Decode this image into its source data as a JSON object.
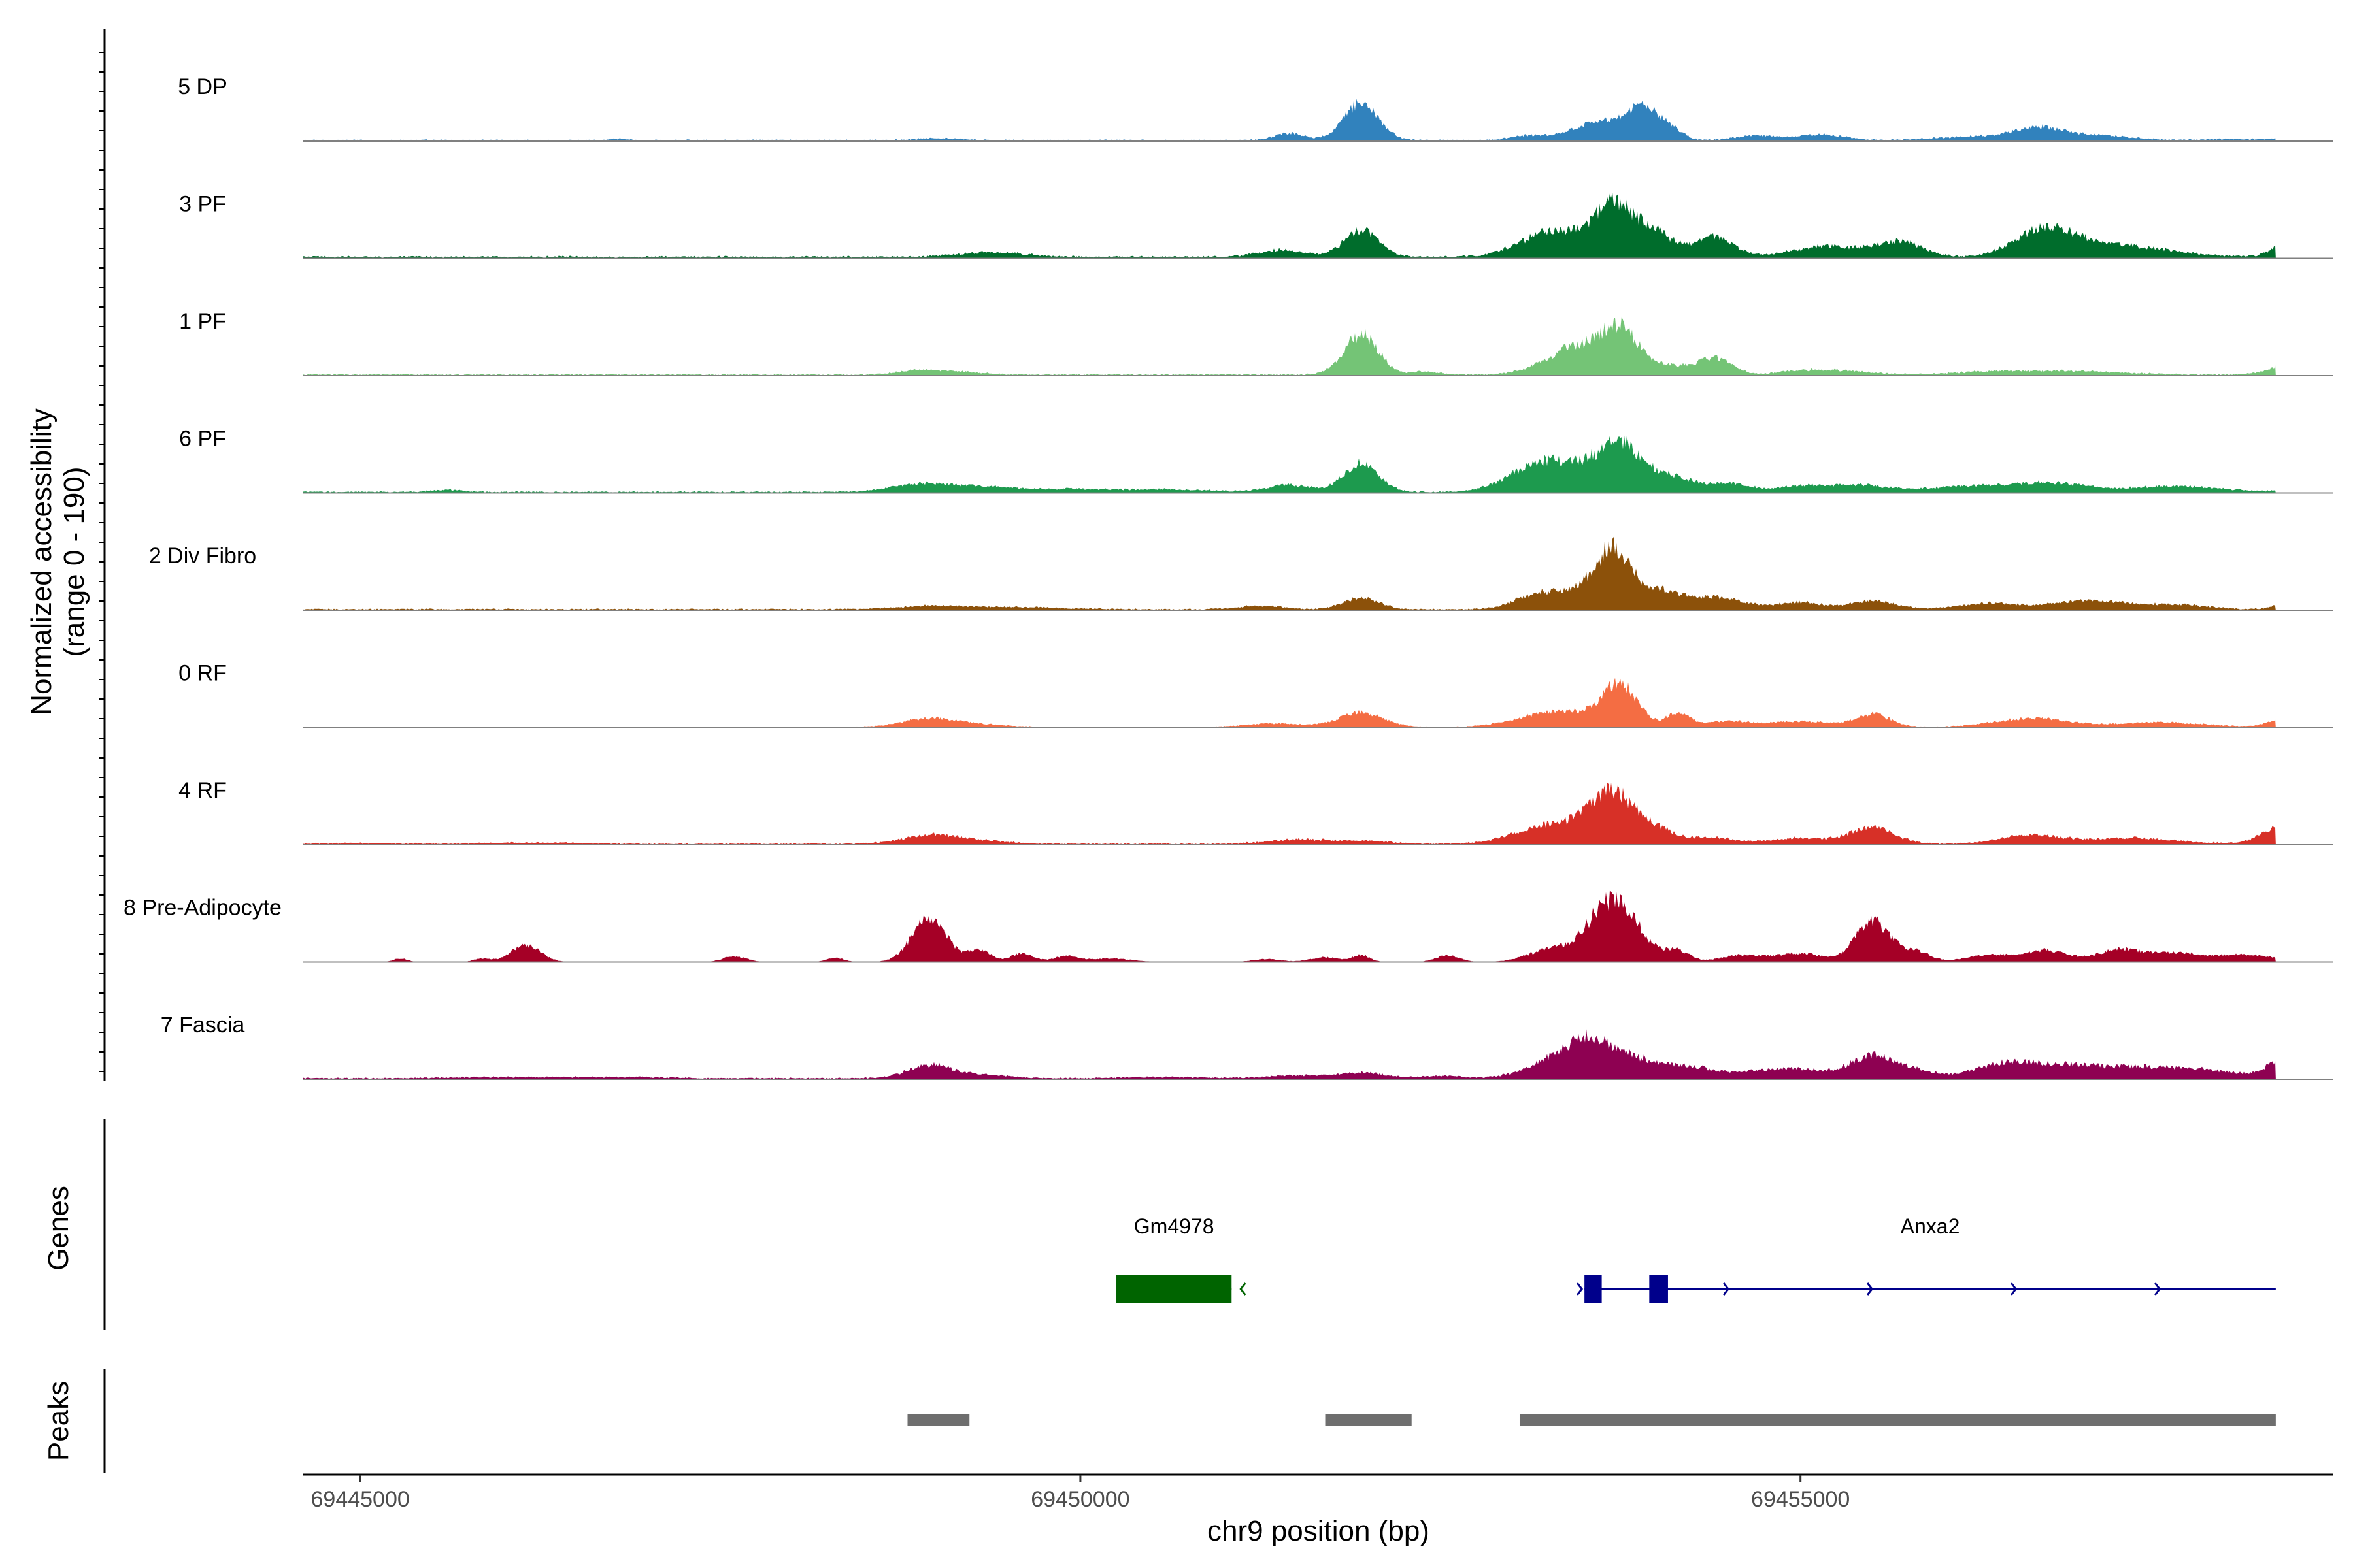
{
  "chart_data": {
    "type": "area",
    "title": "",
    "ylabel_line1": "Normalized accessibility",
    "ylabel_line2": "(range 0 - 190)",
    "y_range": [
      0,
      190
    ],
    "xlabel": "chr9 position (bp)",
    "x_range": [
      69444600,
      69458700
    ],
    "x_ticks": [
      69445000,
      69450000,
      69455000
    ],
    "x_tick_labels": [
      "69445000",
      "69450000",
      "69455000"
    ],
    "genes_label": "Genes",
    "peaks_label": "Peaks",
    "tracks": [
      {
        "name": "5 DP",
        "color": "#3182bd",
        "baseline": 2,
        "peaks": [
          [
            69446800,
            2,
            60
          ],
          [
            69449000,
            3,
            150
          ],
          [
            69451450,
            12,
            100
          ],
          [
            69451950,
            65,
            120
          ],
          [
            69453100,
            7,
            120
          ],
          [
            69453600,
            30,
            200
          ],
          [
            69453900,
            50,
            110
          ],
          [
            69454100,
            17,
            80
          ],
          [
            69454700,
            8,
            150
          ],
          [
            69455150,
            10,
            150
          ],
          [
            69456300,
            7,
            300
          ],
          [
            69456650,
            16,
            150
          ],
          [
            69457000,
            9,
            250
          ],
          [
            69458000,
            2,
            150
          ],
          [
            69458500,
            12,
            120
          ]
        ]
      },
      {
        "name": "3 PF",
        "color": "#006d2c",
        "baseline": 3,
        "peaks": [
          [
            69449300,
            5,
            200
          ],
          [
            69449500,
            4,
            200
          ],
          [
            69451400,
            12,
            150
          ],
          [
            69451950,
            45,
            120
          ],
          [
            69453200,
            25,
            200
          ],
          [
            69453500,
            34,
            250
          ],
          [
            69453700,
            60,
            110
          ],
          [
            69453950,
            45,
            150
          ],
          [
            69454400,
            35,
            130
          ],
          [
            69455200,
            18,
            250
          ],
          [
            69455700,
            25,
            150
          ],
          [
            69456700,
            45,
            200
          ],
          [
            69457200,
            20,
            350
          ],
          [
            69458450,
            40,
            120
          ],
          [
            69458650,
            15,
            100
          ]
        ]
      },
      {
        "name": "1 PF",
        "color": "#74c476",
        "baseline": 2,
        "peaks": [
          [
            69448900,
            8,
            150
          ],
          [
            69449200,
            4,
            150
          ],
          [
            69451950,
            68,
            120
          ],
          [
            69452400,
            5,
            100
          ],
          [
            69453200,
            12,
            150
          ],
          [
            69453450,
            45,
            150
          ],
          [
            69453750,
            80,
            130
          ],
          [
            69454100,
            15,
            100
          ],
          [
            69454400,
            30,
            120
          ],
          [
            69455000,
            6,
            150
          ],
          [
            69455300,
            6,
            200
          ],
          [
            69456400,
            6,
            300
          ],
          [
            69457000,
            5,
            300
          ],
          [
            69458450,
            22,
            150
          ]
        ]
      },
      {
        "name": "6 PF",
        "color": "#1d9a4e",
        "baseline": 2,
        "peaks": [
          [
            69445600,
            4,
            100
          ],
          [
            69448900,
            14,
            200
          ],
          [
            69449300,
            8,
            200
          ],
          [
            69449900,
            5,
            300
          ],
          [
            69450600,
            4,
            300
          ],
          [
            69451450,
            12,
            150
          ],
          [
            69451950,
            50,
            120
          ],
          [
            69453150,
            40,
            200
          ],
          [
            69453450,
            30,
            200
          ],
          [
            69453750,
            75,
            150
          ],
          [
            69454100,
            25,
            150
          ],
          [
            69454500,
            15,
            150
          ],
          [
            69455000,
            10,
            150
          ],
          [
            69455400,
            12,
            200
          ],
          [
            69456200,
            10,
            300
          ],
          [
            69456750,
            14,
            250
          ],
          [
            69457600,
            10,
            300
          ],
          [
            69458500,
            22,
            100
          ]
        ]
      },
      {
        "name": "2 Div Fibro",
        "color": "#8c510a",
        "baseline": 2,
        "peaks": [
          [
            69449000,
            6,
            250
          ],
          [
            69449600,
            3,
            300
          ],
          [
            69451250,
            6,
            150
          ],
          [
            69451950,
            20,
            120
          ],
          [
            69453150,
            20,
            150
          ],
          [
            69453500,
            30,
            200
          ],
          [
            69453700,
            85,
            120
          ],
          [
            69454000,
            30,
            150
          ],
          [
            69454400,
            20,
            200
          ],
          [
            69455000,
            12,
            150
          ],
          [
            69455500,
            15,
            150
          ],
          [
            69456300,
            10,
            200
          ],
          [
            69457000,
            15,
            250
          ],
          [
            69457600,
            8,
            200
          ],
          [
            69458500,
            30,
            120
          ]
        ]
      },
      {
        "name": "0 RF",
        "color": "#f46d43",
        "baseline": 1,
        "peaks": [
          [
            69448950,
            15,
            180
          ],
          [
            69449300,
            4,
            200
          ],
          [
            69451350,
            6,
            200
          ],
          [
            69451950,
            25,
            150
          ],
          [
            69453150,
            15,
            200
          ],
          [
            69453450,
            20,
            200
          ],
          [
            69453750,
            70,
            120
          ],
          [
            69454150,
            25,
            80
          ],
          [
            69454500,
            10,
            150
          ],
          [
            69455000,
            10,
            200
          ],
          [
            69455500,
            22,
            120
          ],
          [
            69456600,
            15,
            250
          ],
          [
            69457500,
            8,
            300
          ],
          [
            69458500,
            40,
            140
          ]
        ]
      },
      {
        "name": "4 RF",
        "color": "#d73027",
        "baseline": 2,
        "peaks": [
          [
            69445000,
            1,
            300
          ],
          [
            69446200,
            2,
            300
          ],
          [
            69448950,
            15,
            180
          ],
          [
            69449300,
            5,
            200
          ],
          [
            69451500,
            7,
            200
          ],
          [
            69451950,
            5,
            200
          ],
          [
            69453150,
            20,
            200
          ],
          [
            69453450,
            25,
            200
          ],
          [
            69453700,
            75,
            150
          ],
          [
            69454000,
            22,
            150
          ],
          [
            69454400,
            10,
            150
          ],
          [
            69455000,
            10,
            200
          ],
          [
            69455500,
            28,
            150
          ],
          [
            69456600,
            15,
            200
          ],
          [
            69457300,
            10,
            300
          ],
          [
            69458400,
            40,
            150
          ],
          [
            69458620,
            30,
            80
          ]
        ]
      },
      {
        "name": "8 Pre-Adipocyte",
        "color": "#a50026",
        "baseline": 0,
        "peaks": [
          [
            69445280,
            6,
            50
          ],
          [
            69445850,
            6,
            60
          ],
          [
            69446150,
            30,
            100
          ],
          [
            69447600,
            10,
            80
          ],
          [
            69448300,
            7,
            60
          ],
          [
            69448950,
            75,
            120
          ],
          [
            69449300,
            20,
            80
          ],
          [
            69449600,
            15,
            80
          ],
          [
            69449900,
            10,
            80
          ],
          [
            69450200,
            6,
            150
          ],
          [
            69451300,
            5,
            100
          ],
          [
            69451700,
            8,
            100
          ],
          [
            69451950,
            12,
            60
          ],
          [
            69452550,
            12,
            80
          ],
          [
            69453250,
            20,
            150
          ],
          [
            69453600,
            40,
            150
          ],
          [
            69453750,
            80,
            160
          ],
          [
            69454150,
            18,
            80
          ],
          [
            69454600,
            12,
            150
          ],
          [
            69455000,
            15,
            150
          ],
          [
            69455500,
            70,
            120
          ],
          [
            69455800,
            18,
            100
          ],
          [
            69456300,
            12,
            150
          ],
          [
            69456700,
            20,
            150
          ],
          [
            69457200,
            20,
            150
          ],
          [
            69457600,
            15,
            200
          ],
          [
            69458100,
            12,
            200
          ],
          [
            69458600,
            40,
            100
          ]
        ]
      },
      {
        "name": "7 Fascia",
        "color": "#8e0152",
        "baseline": 2,
        "peaks": [
          [
            69446000,
            2,
            400
          ],
          [
            69446800,
            2,
            300
          ],
          [
            69448950,
            22,
            150
          ],
          [
            69449300,
            6,
            200
          ],
          [
            69450600,
            2,
            300
          ],
          [
            69451500,
            5,
            200
          ],
          [
            69451950,
            10,
            150
          ],
          [
            69452500,
            4,
            150
          ],
          [
            69453300,
            30,
            200
          ],
          [
            69453550,
            55,
            150
          ],
          [
            69453850,
            30,
            150
          ],
          [
            69454200,
            20,
            150
          ],
          [
            69454600,
            10,
            200
          ],
          [
            69455000,
            15,
            200
          ],
          [
            69455500,
            38,
            150
          ],
          [
            69455800,
            12,
            150
          ],
          [
            69456400,
            22,
            200
          ],
          [
            69456800,
            18,
            250
          ],
          [
            69457300,
            15,
            300
          ],
          [
            69457800,
            12,
            300
          ],
          [
            69458400,
            40,
            120
          ],
          [
            69458600,
            50,
            100
          ]
        ]
      }
    ],
    "genes": [
      {
        "name": "Gm4978",
        "color": "#006400",
        "start": 69450250,
        "end": 69451050,
        "strand": "-",
        "exons": [
          [
            69450250,
            69451050
          ]
        ]
      },
      {
        "name": "Anxa2",
        "color": "#00008b",
        "start": 69453500,
        "end": 69458300,
        "strand": "+",
        "exons": [
          [
            69453500,
            69453620
          ],
          [
            69453950,
            69454080
          ]
        ]
      }
    ],
    "peak_regions": [
      [
        69448800,
        69449230
      ],
      [
        69451700,
        69452300
      ],
      [
        69453050,
        69458300
      ]
    ],
    "peak_color": "#6e6e6e"
  }
}
